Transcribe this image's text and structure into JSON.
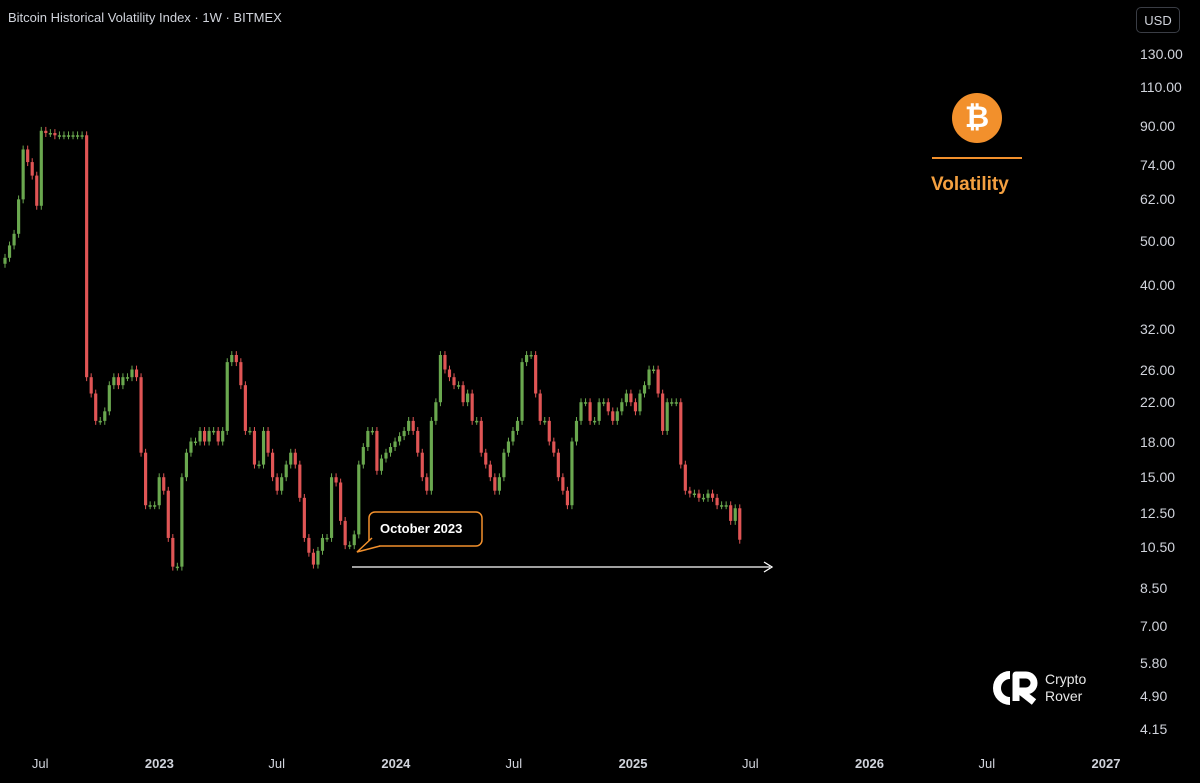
{
  "header": {
    "title": "Bitcoin Historical Volatility Index · 1W · BITMEX",
    "currency": "USD"
  },
  "chart_data": {
    "type": "candlestick",
    "title": "Bitcoin Historical Volatility Index · 1W · BITMEX",
    "y_scale": "log",
    "ylim": [
      4.0,
      135
    ],
    "y_ticks": [
      "130.00",
      "110.00",
      "90.00",
      "74.00",
      "62.00",
      "50.00",
      "40.00",
      "32.00",
      "26.00",
      "22.00",
      "18.00",
      "15.00",
      "12.50",
      "10.50",
      "8.50",
      "7.00",
      "5.80",
      "4.90",
      "4.15"
    ],
    "x_ticks": [
      {
        "label": "Jul",
        "major": false
      },
      {
        "label": "2023",
        "major": true
      },
      {
        "label": "Jul",
        "major": false
      },
      {
        "label": "2024",
        "major": true
      },
      {
        "label": "Jul",
        "major": false
      },
      {
        "label": "2025",
        "major": true
      },
      {
        "label": "Jul",
        "major": false
      },
      {
        "label": "2026",
        "major": true
      },
      {
        "label": "Jul",
        "major": false
      },
      {
        "label": "2027",
        "major": true
      }
    ],
    "x_range": [
      "2022-04-30",
      "2027-02-07"
    ],
    "weekly_close": [
      46,
      49,
      52,
      62,
      80,
      75,
      70,
      60,
      88,
      87,
      87,
      86,
      86,
      86,
      86,
      86,
      86,
      86,
      25,
      23,
      20,
      20,
      21,
      24,
      25,
      24,
      25,
      25,
      26,
      25,
      17,
      13,
      13,
      13,
      15,
      14,
      11,
      9.5,
      9.5,
      15,
      17,
      18,
      18,
      19,
      18,
      19,
      19,
      18,
      19,
      27,
      28,
      27,
      24,
      19,
      19,
      16,
      16,
      19,
      17,
      15,
      14,
      15,
      16,
      17,
      16,
      13.5,
      11,
      10.2,
      9.6,
      10.3,
      11,
      11,
      15,
      14.6,
      12,
      10.6,
      10.6,
      11.2,
      16,
      17.5,
      19,
      19,
      15.5,
      16.5,
      17,
      17.5,
      18,
      18.5,
      19,
      20,
      19,
      17,
      15,
      14,
      20,
      22,
      28,
      26,
      25,
      24,
      24,
      22,
      23,
      20,
      20,
      17,
      16,
      15,
      14,
      15,
      17,
      18,
      19,
      20,
      27,
      28,
      28,
      23,
      20,
      20,
      18,
      17,
      15,
      14,
      13,
      18,
      20,
      22,
      22,
      20,
      20,
      22,
      22,
      21,
      20,
      21,
      22,
      23,
      22,
      21,
      23,
      24,
      26,
      26,
      23,
      19,
      22,
      22,
      22,
      16,
      14,
      13.8,
      13.8,
      13.5,
      13.5,
      13.8,
      13.5,
      13,
      13,
      13,
      12,
      12.8,
      10.9
    ]
  },
  "annotation": {
    "callout_label": "October 2023"
  },
  "overlay": {
    "coin_symbol": "₿",
    "coin_icon": "bitcoin-icon",
    "volatility_label": "Volatility"
  },
  "brand": {
    "line1": "Crypto",
    "line2": "Rover"
  },
  "colors": {
    "up": "#6aa84f",
    "down": "#e05555",
    "accent": "#f2902c",
    "background": "#000000",
    "arrow": "#ffffff"
  }
}
